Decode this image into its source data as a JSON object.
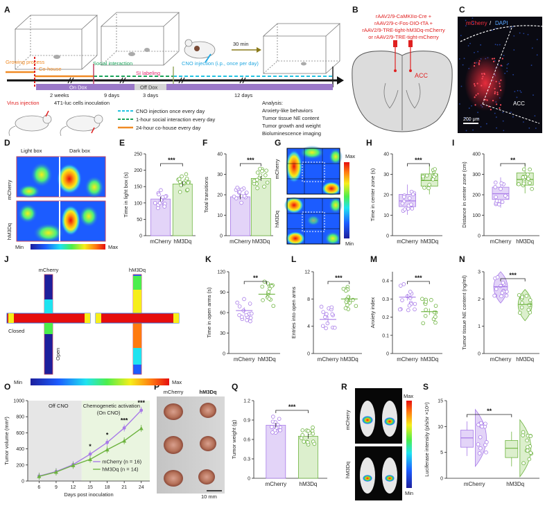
{
  "colors": {
    "mcherry": "#a87be8",
    "mcherry_fill": "#e3d4f8",
    "hm3dq": "#6db33f",
    "hm3dq_fill": "#dcefcd",
    "timeline": "#111111",
    "dox": "#9b79c9",
    "cohouse": "#f08a24",
    "cno": "#21c2e0",
    "social": "#1aa35a"
  },
  "panel_labels": [
    "A",
    "B",
    "C",
    "D",
    "E",
    "F",
    "G",
    "H",
    "I",
    "J",
    "K",
    "L",
    "M",
    "N",
    "O",
    "P",
    "Q",
    "R",
    "S"
  ],
  "groups": [
    "mCherry",
    "hM3Dq"
  ],
  "panel_a": {
    "phases": [
      "Growing process",
      "Co-house",
      "Social interaction",
      "SI labeling",
      "CNO injection (i.p., once per day)"
    ],
    "durations": [
      "2 weeks",
      "9 days",
      "3 days",
      "12 days"
    ],
    "dox": [
      "On Dox",
      "Off Dox"
    ],
    "wait": "30 min",
    "events": [
      "Virus injection",
      "4T1-luc cells inoculation"
    ],
    "legend": [
      "CNO injection once every day",
      "1-hour social interaction every day",
      "24-hour co-house every day"
    ],
    "analysis_title": "Analysis:",
    "analysis": [
      "Anxiety-like behaviors",
      "Tumor tissue NE content",
      "Tumor growth and weight",
      "Bioluminescence imaging"
    ]
  },
  "panel_b": {
    "viruses": [
      "rAAV2/9-CaMKIIα-Cre +",
      "rAAV2/9-c-Fos-DIO-tTA +",
      "rAAV2/9-TRE-tight-hM3Dq-mCherry",
      "or  rAAV2/9-TRE-tight-mCherry"
    ],
    "region": "ACC"
  },
  "panel_c": {
    "title_a": "mCherry",
    "title_sep": " / ",
    "title_b": "DAPI",
    "region": "ACC",
    "scalebar": "200 μm"
  },
  "panel_d": {
    "columns": [
      "Light box",
      "Dark box"
    ],
    "min": "Min",
    "max": "Max"
  },
  "panel_g": {
    "min": "Min",
    "max": "Max"
  },
  "panel_j": {
    "closed": "Closed",
    "open": "Open",
    "min": "Min",
    "max": "Max"
  },
  "panel_p": {
    "scalebar": "10 mm"
  },
  "panel_r": {
    "max": "Max",
    "min": "Min"
  },
  "chart_data": [
    {
      "panel": "E",
      "type": "bar",
      "ylabel": "Time in light box (s)",
      "ylim": [
        0,
        250
      ],
      "ticks": [
        0,
        50,
        100,
        150,
        200,
        250
      ],
      "categories": [
        "mCherry",
        "hM3Dq"
      ],
      "values": [
        112,
        158
      ],
      "sig": "***"
    },
    {
      "panel": "F",
      "type": "bar",
      "ylabel": "Total transitions",
      "ylim": [
        0,
        40
      ],
      "ticks": [
        0,
        10,
        20,
        30,
        40
      ],
      "categories": [
        "mCherry",
        "hM3Dq"
      ],
      "values": [
        19,
        28
      ],
      "sig": "***"
    },
    {
      "panel": "H",
      "type": "box",
      "ylabel": "Time in center zone (s)",
      "ylim": [
        0,
        40
      ],
      "ticks": [
        0,
        10,
        20,
        30,
        40
      ],
      "categories": [
        "mCherry",
        "hM3Dq"
      ],
      "medians": [
        17,
        27
      ],
      "sig": "***"
    },
    {
      "panel": "I",
      "type": "box",
      "ylabel": "Distance in center zone (cm)",
      "ylim": [
        0,
        400
      ],
      "ticks": [
        0,
        100,
        200,
        300,
        400
      ],
      "categories": [
        "mCherry",
        "hM3Dq"
      ],
      "medians": [
        205,
        275
      ],
      "sig": "**"
    },
    {
      "panel": "K",
      "type": "scatter",
      "ylabel": "Time in open arms (s)",
      "ylim": [
        0,
        120
      ],
      "ticks": [
        0,
        30,
        60,
        90,
        120
      ],
      "categories": [
        "mCherry",
        "hM3Dq"
      ],
      "means": [
        63,
        87
      ],
      "sig": "**"
    },
    {
      "panel": "L",
      "type": "scatter",
      "ylabel": "Entries into open arms",
      "ylim": [
        0,
        12
      ],
      "ticks": [
        0,
        4,
        8,
        12
      ],
      "categories": [
        "mCherry",
        "hM3Dq"
      ],
      "means": [
        5,
        8
      ],
      "sig": "***"
    },
    {
      "panel": "M",
      "type": "scatter",
      "ylabel": "Anxiety index",
      "ylim": [
        0,
        0.45
      ],
      "ticks": [
        0,
        0.1,
        0.2,
        0.3,
        0.4
      ],
      "categories": [
        "mCherry",
        "hM3Dq"
      ],
      "means": [
        0.31,
        0.23
      ],
      "sig": "***"
    },
    {
      "panel": "N",
      "type": "violin",
      "ylabel": "Tumor tissue NE content (ng/ml)",
      "ylim": [
        0,
        3
      ],
      "ticks": [
        0,
        1,
        2,
        3
      ],
      "categories": [
        "mCherry",
        "hM3Dq"
      ],
      "means": [
        2.45,
        1.8
      ],
      "sig": "***"
    },
    {
      "panel": "O",
      "type": "line",
      "xlabel": "Days post inoculation",
      "ylabel": "Tumor volume (mm³)",
      "ylim": [
        0,
        1000
      ],
      "yticks": [
        0,
        200,
        400,
        600,
        800,
        1000
      ],
      "x": [
        6,
        9,
        12,
        15,
        18,
        21,
        24
      ],
      "xlim": [
        4,
        25.5
      ],
      "series": [
        {
          "name": "mCherry (n = 16)",
          "values": [
            62,
            118,
            205,
            335,
            480,
            660,
            880
          ]
        },
        {
          "name": "hM3Dq (n = 14)",
          "values": [
            58,
            112,
            195,
            270,
            390,
            500,
            655
          ]
        }
      ],
      "shaded_off": "Off CNO",
      "shaded_on_1": "Chemogenetic activation",
      "shaded_on_2": "(On CNO)",
      "sigs": [
        {
          "x": 15,
          "label": "*"
        },
        {
          "x": 18,
          "label": "*"
        },
        {
          "x": 21,
          "label": "***"
        },
        {
          "x": 24,
          "label": "***"
        }
      ]
    },
    {
      "panel": "Q",
      "type": "bar",
      "ylabel": "Tumor weight (g)",
      "ylim": [
        0,
        1.2
      ],
      "ticks": [
        0,
        0.3,
        0.6,
        0.9,
        1.2
      ],
      "categories": [
        "mCherry",
        "hM3Dq"
      ],
      "values": [
        0.82,
        0.65
      ],
      "sig": "***"
    },
    {
      "panel": "S",
      "type": "box-violin",
      "ylabel": "Luciferase intensity (p/s/sr ×10⁸)",
      "ylim": [
        0,
        15
      ],
      "ticks": [
        0,
        5,
        10,
        15
      ],
      "categories": [
        "mCherry",
        "hM3Dq"
      ],
      "medians": [
        7.8,
        5.8
      ],
      "sig": "**"
    }
  ]
}
